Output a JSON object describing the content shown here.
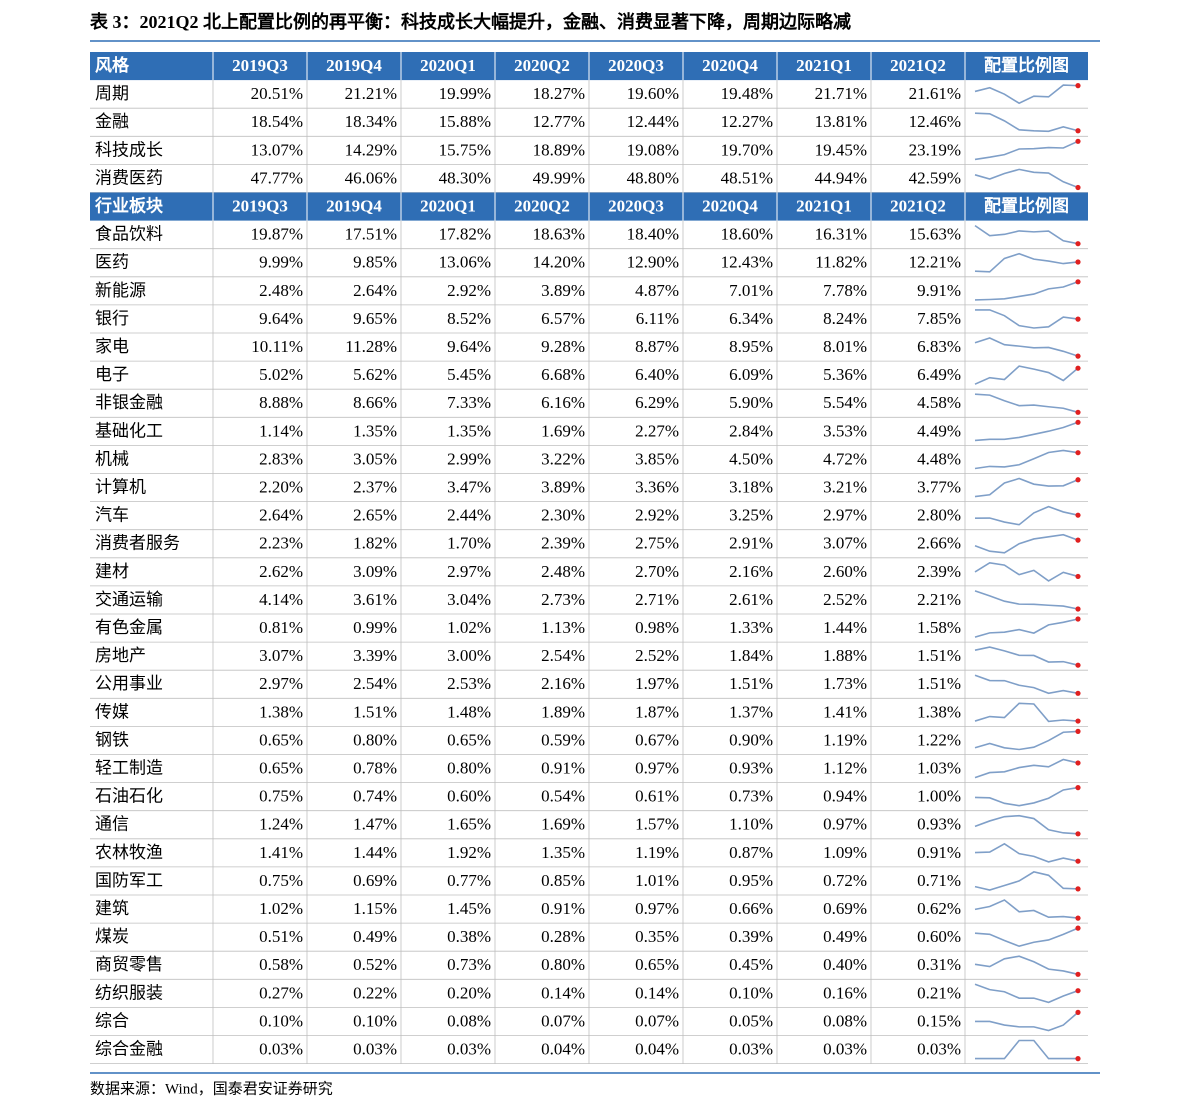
{
  "title": "表 3：2021Q2 北上配置比例的再平衡：科技成长大幅提升，金融、消费显著下降，周期边际略减",
  "table1": {
    "header": [
      "风格",
      "2019Q3",
      "2019Q4",
      "2020Q1",
      "2020Q2",
      "2020Q3",
      "2020Q4",
      "2021Q1",
      "2021Q2",
      "配置比例图"
    ],
    "rows": [
      [
        "周期",
        "20.51%",
        "21.21%",
        "19.99%",
        "18.27%",
        "19.60%",
        "19.48%",
        "21.71%",
        "21.61%"
      ],
      [
        "金融",
        "18.54%",
        "18.34%",
        "15.88%",
        "12.77%",
        "12.44%",
        "12.27%",
        "13.81%",
        "12.46%"
      ],
      [
        "科技成长",
        "13.07%",
        "14.29%",
        "15.75%",
        "18.89%",
        "19.08%",
        "19.70%",
        "19.45%",
        "23.19%"
      ],
      [
        "消费医药",
        "47.77%",
        "46.06%",
        "48.30%",
        "49.99%",
        "48.80%",
        "48.51%",
        "44.94%",
        "42.59%"
      ]
    ]
  },
  "table2": {
    "header": [
      "行业板块",
      "2019Q3",
      "2019Q4",
      "2020Q1",
      "2020Q2",
      "2020Q3",
      "2020Q4",
      "2021Q1",
      "2021Q2",
      "配置比例图"
    ],
    "rows": [
      [
        "食品饮料",
        "19.87%",
        "17.51%",
        "17.82%",
        "18.63%",
        "18.40%",
        "18.60%",
        "16.31%",
        "15.63%"
      ],
      [
        "医药",
        "9.99%",
        "9.85%",
        "13.06%",
        "14.20%",
        "12.90%",
        "12.43%",
        "11.82%",
        "12.21%"
      ],
      [
        "新能源",
        "2.48%",
        "2.64%",
        "2.92%",
        "3.89%",
        "4.87%",
        "7.01%",
        "7.78%",
        "9.91%"
      ],
      [
        "银行",
        "9.64%",
        "9.65%",
        "8.52%",
        "6.57%",
        "6.11%",
        "6.34%",
        "8.24%",
        "7.85%"
      ],
      [
        "家电",
        "10.11%",
        "11.28%",
        "9.64%",
        "9.28%",
        "8.87%",
        "8.95%",
        "8.01%",
        "6.83%"
      ],
      [
        "电子",
        "5.02%",
        "5.62%",
        "5.45%",
        "6.68%",
        "6.40%",
        "6.09%",
        "5.36%",
        "6.49%"
      ],
      [
        "非银金融",
        "8.88%",
        "8.66%",
        "7.33%",
        "6.16%",
        "6.29%",
        "5.90%",
        "5.54%",
        "4.58%"
      ],
      [
        "基础化工",
        "1.14%",
        "1.35%",
        "1.35%",
        "1.69%",
        "2.27%",
        "2.84%",
        "3.53%",
        "4.49%"
      ],
      [
        "机械",
        "2.83%",
        "3.05%",
        "2.99%",
        "3.22%",
        "3.85%",
        "4.50%",
        "4.72%",
        "4.48%"
      ],
      [
        "计算机",
        "2.20%",
        "2.37%",
        "3.47%",
        "3.89%",
        "3.36%",
        "3.18%",
        "3.21%",
        "3.77%"
      ],
      [
        "汽车",
        "2.64%",
        "2.65%",
        "2.44%",
        "2.30%",
        "2.92%",
        "3.25%",
        "2.97%",
        "2.80%"
      ],
      [
        "消费者服务",
        "2.23%",
        "1.82%",
        "1.70%",
        "2.39%",
        "2.75%",
        "2.91%",
        "3.07%",
        "2.66%"
      ],
      [
        "建材",
        "2.62%",
        "3.09%",
        "2.97%",
        "2.48%",
        "2.70%",
        "2.16%",
        "2.60%",
        "2.39%"
      ],
      [
        "交通运输",
        "4.14%",
        "3.61%",
        "3.04%",
        "2.73%",
        "2.71%",
        "2.61%",
        "2.52%",
        "2.21%"
      ],
      [
        "有色金属",
        "0.81%",
        "0.99%",
        "1.02%",
        "1.13%",
        "0.98%",
        "1.33%",
        "1.44%",
        "1.58%"
      ],
      [
        "房地产",
        "3.07%",
        "3.39%",
        "3.00%",
        "2.54%",
        "2.52%",
        "1.84%",
        "1.88%",
        "1.51%"
      ],
      [
        "公用事业",
        "2.97%",
        "2.54%",
        "2.53%",
        "2.16%",
        "1.97%",
        "1.51%",
        "1.73%",
        "1.51%"
      ],
      [
        "传媒",
        "1.38%",
        "1.51%",
        "1.48%",
        "1.89%",
        "1.87%",
        "1.37%",
        "1.41%",
        "1.38%"
      ],
      [
        "钢铁",
        "0.65%",
        "0.80%",
        "0.65%",
        "0.59%",
        "0.67%",
        "0.90%",
        "1.19%",
        "1.22%"
      ],
      [
        "轻工制造",
        "0.65%",
        "0.78%",
        "0.80%",
        "0.91%",
        "0.97%",
        "0.93%",
        "1.12%",
        "1.03%"
      ],
      [
        "石油石化",
        "0.75%",
        "0.74%",
        "0.60%",
        "0.54%",
        "0.61%",
        "0.73%",
        "0.94%",
        "1.00%"
      ],
      [
        "通信",
        "1.24%",
        "1.47%",
        "1.65%",
        "1.69%",
        "1.57%",
        "1.10%",
        "0.97%",
        "0.93%"
      ],
      [
        "农林牧渔",
        "1.41%",
        "1.44%",
        "1.92%",
        "1.35%",
        "1.19%",
        "0.87%",
        "1.09%",
        "0.91%"
      ],
      [
        "国防军工",
        "0.75%",
        "0.69%",
        "0.77%",
        "0.85%",
        "1.01%",
        "0.95%",
        "0.72%",
        "0.71%"
      ],
      [
        "建筑",
        "1.02%",
        "1.15%",
        "1.45%",
        "0.91%",
        "0.97%",
        "0.66%",
        "0.69%",
        "0.62%"
      ],
      [
        "煤炭",
        "0.51%",
        "0.49%",
        "0.38%",
        "0.28%",
        "0.35%",
        "0.39%",
        "0.49%",
        "0.60%"
      ],
      [
        "商贸零售",
        "0.58%",
        "0.52%",
        "0.73%",
        "0.80%",
        "0.65%",
        "0.45%",
        "0.40%",
        "0.31%"
      ],
      [
        "纺织服装",
        "0.27%",
        "0.22%",
        "0.20%",
        "0.14%",
        "0.14%",
        "0.10%",
        "0.16%",
        "0.21%"
      ],
      [
        "综合",
        "0.10%",
        "0.10%",
        "0.08%",
        "0.07%",
        "0.07%",
        "0.05%",
        "0.08%",
        "0.15%"
      ],
      [
        "综合金融",
        "0.03%",
        "0.03%",
        "0.03%",
        "0.04%",
        "0.04%",
        "0.03%",
        "0.03%",
        "0.03%"
      ]
    ]
  },
  "source": "数据来源：Wind，国泰君安证券研究"
}
